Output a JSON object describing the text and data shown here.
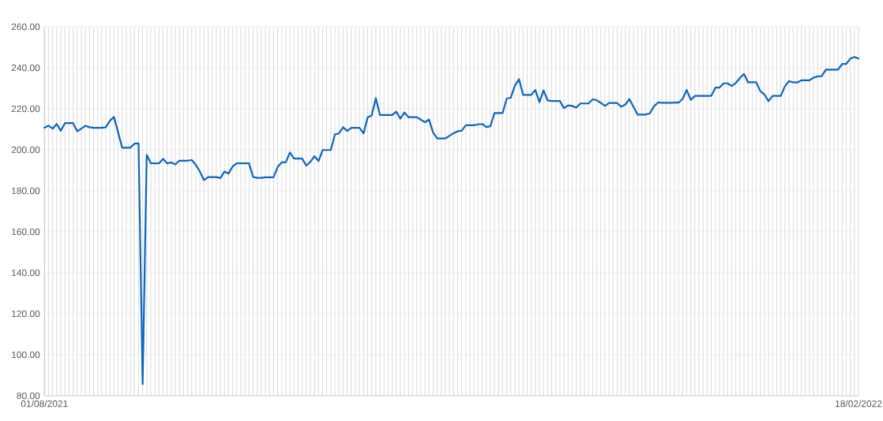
{
  "chart_data": {
    "type": "line",
    "categories": [
      "01/08/2021",
      null,
      null,
      null,
      null,
      null,
      null,
      null,
      null,
      null,
      null,
      null,
      null,
      null,
      null,
      null,
      null,
      null,
      null,
      null,
      null,
      null,
      null,
      null,
      null,
      null,
      null,
      null,
      null,
      null,
      null,
      null,
      null,
      null,
      null,
      null,
      null,
      null,
      null,
      null,
      null,
      null,
      null,
      null,
      null,
      null,
      null,
      null,
      null,
      null,
      null,
      null,
      null,
      null,
      null,
      null,
      null,
      null,
      null,
      null,
      null,
      null,
      null,
      null,
      null,
      null,
      null,
      null,
      null,
      null,
      null,
      null,
      null,
      null,
      null,
      null,
      null,
      null,
      null,
      null,
      null,
      null,
      null,
      null,
      null,
      null,
      null,
      null,
      null,
      null,
      null,
      null,
      null,
      null,
      null,
      null,
      null,
      null,
      null,
      null,
      null,
      null,
      null,
      null,
      null,
      null,
      null,
      null,
      null,
      null,
      null,
      null,
      null,
      null,
      null,
      null,
      null,
      null,
      null,
      null,
      null,
      null,
      null,
      null,
      null,
      null,
      null,
      null,
      null,
      null,
      null,
      null,
      null,
      null,
      null,
      null,
      null,
      null,
      null,
      null,
      null,
      null,
      null,
      null,
      null,
      null,
      null,
      null,
      null,
      null,
      null,
      null,
      null,
      null,
      null,
      null,
      null,
      null,
      null,
      null,
      null,
      null,
      null,
      null,
      null,
      null,
      null,
      null,
      null,
      null,
      null,
      null,
      null,
      null,
      null,
      null,
      null,
      null,
      null,
      null,
      null,
      null,
      null,
      null,
      null,
      null,
      null,
      null,
      null,
      null,
      null,
      null,
      null,
      null,
      null,
      null,
      null,
      null,
      null,
      "18/02/2022"
    ],
    "values": [
      210.8,
      211.8,
      210.3,
      212.6,
      209.3,
      213.0,
      213.0,
      213.0,
      209.0,
      210.3,
      211.7,
      211.0,
      210.7,
      210.7,
      210.7,
      211.0,
      214.2,
      216.0,
      208.5,
      201.0,
      201.0,
      201.0,
      203.0,
      203.1,
      85.7,
      197.6,
      193.4,
      193.4,
      193.4,
      195.6,
      193.4,
      193.8,
      192.9,
      194.7,
      194.7,
      194.7,
      195.0,
      192.7,
      189.3,
      185.2,
      186.7,
      186.7,
      186.7,
      186.2,
      189.4,
      188.4,
      191.9,
      193.4,
      193.4,
      193.4,
      193.4,
      186.8,
      186.3,
      186.3,
      186.6,
      186.6,
      186.6,
      191.6,
      193.9,
      193.9,
      198.7,
      195.7,
      195.7,
      195.7,
      192.3,
      194.1,
      196.9,
      194.5,
      199.9,
      199.9,
      199.9,
      207.5,
      208.0,
      211.0,
      209.2,
      210.7,
      210.7,
      210.7,
      208.0,
      215.9,
      216.7,
      225.2,
      217.0,
      217.0,
      217.0,
      217.0,
      218.6,
      215.2,
      218.2,
      215.9,
      215.9,
      215.9,
      214.7,
      213.4,
      214.8,
      208.4,
      205.5,
      205.5,
      205.5,
      206.8,
      208.1,
      209.0,
      209.4,
      212.0,
      212.0,
      212.0,
      212.4,
      212.6,
      211.1,
      211.5,
      217.9,
      217.9,
      217.9,
      225.0,
      225.4,
      231.3,
      234.5,
      226.8,
      226.8,
      226.8,
      229.2,
      223.2,
      229.0,
      224.1,
      223.8,
      223.8,
      223.8,
      220.3,
      221.7,
      221.4,
      220.6,
      222.6,
      222.6,
      222.6,
      224.6,
      224.2,
      222.9,
      221.4,
      222.8,
      222.8,
      222.8,
      221.0,
      222.1,
      224.7,
      220.9,
      217.2,
      217.2,
      217.2,
      217.8,
      221.2,
      223.1,
      222.9,
      222.9,
      222.9,
      223.0,
      223.0,
      224.8,
      229.2,
      224.3,
      226.3,
      226.3,
      226.3,
      226.3,
      226.3,
      230.3,
      230.3,
      232.4,
      232.4,
      231.1,
      232.6,
      235.0,
      237.0,
      232.9,
      232.9,
      232.9,
      228.6,
      227.0,
      223.7,
      226.3,
      226.3,
      226.3,
      231.0,
      233.5,
      232.9,
      232.8,
      233.9,
      233.9,
      233.9,
      235.2,
      235.8,
      235.9,
      239.1,
      239.1,
      239.1,
      239.1,
      241.9,
      241.9,
      244.5,
      245.3,
      244.5
    ],
    "color": "#0b65c2",
    "ylim": [
      80,
      260
    ],
    "yticks": [
      {
        "value": 80,
        "label": "80.00"
      },
      {
        "value": 100,
        "label": "100.00"
      },
      {
        "value": 120,
        "label": "120.00"
      },
      {
        "value": 140,
        "label": "140.00"
      },
      {
        "value": 160,
        "label": "160.00"
      },
      {
        "value": 180,
        "label": "180.00"
      },
      {
        "value": 200,
        "label": "200.00"
      },
      {
        "value": 220,
        "label": "220.00"
      },
      {
        "value": 240,
        "label": "240.00"
      },
      {
        "value": 260,
        "label": "260.00"
      }
    ],
    "grid": true
  }
}
